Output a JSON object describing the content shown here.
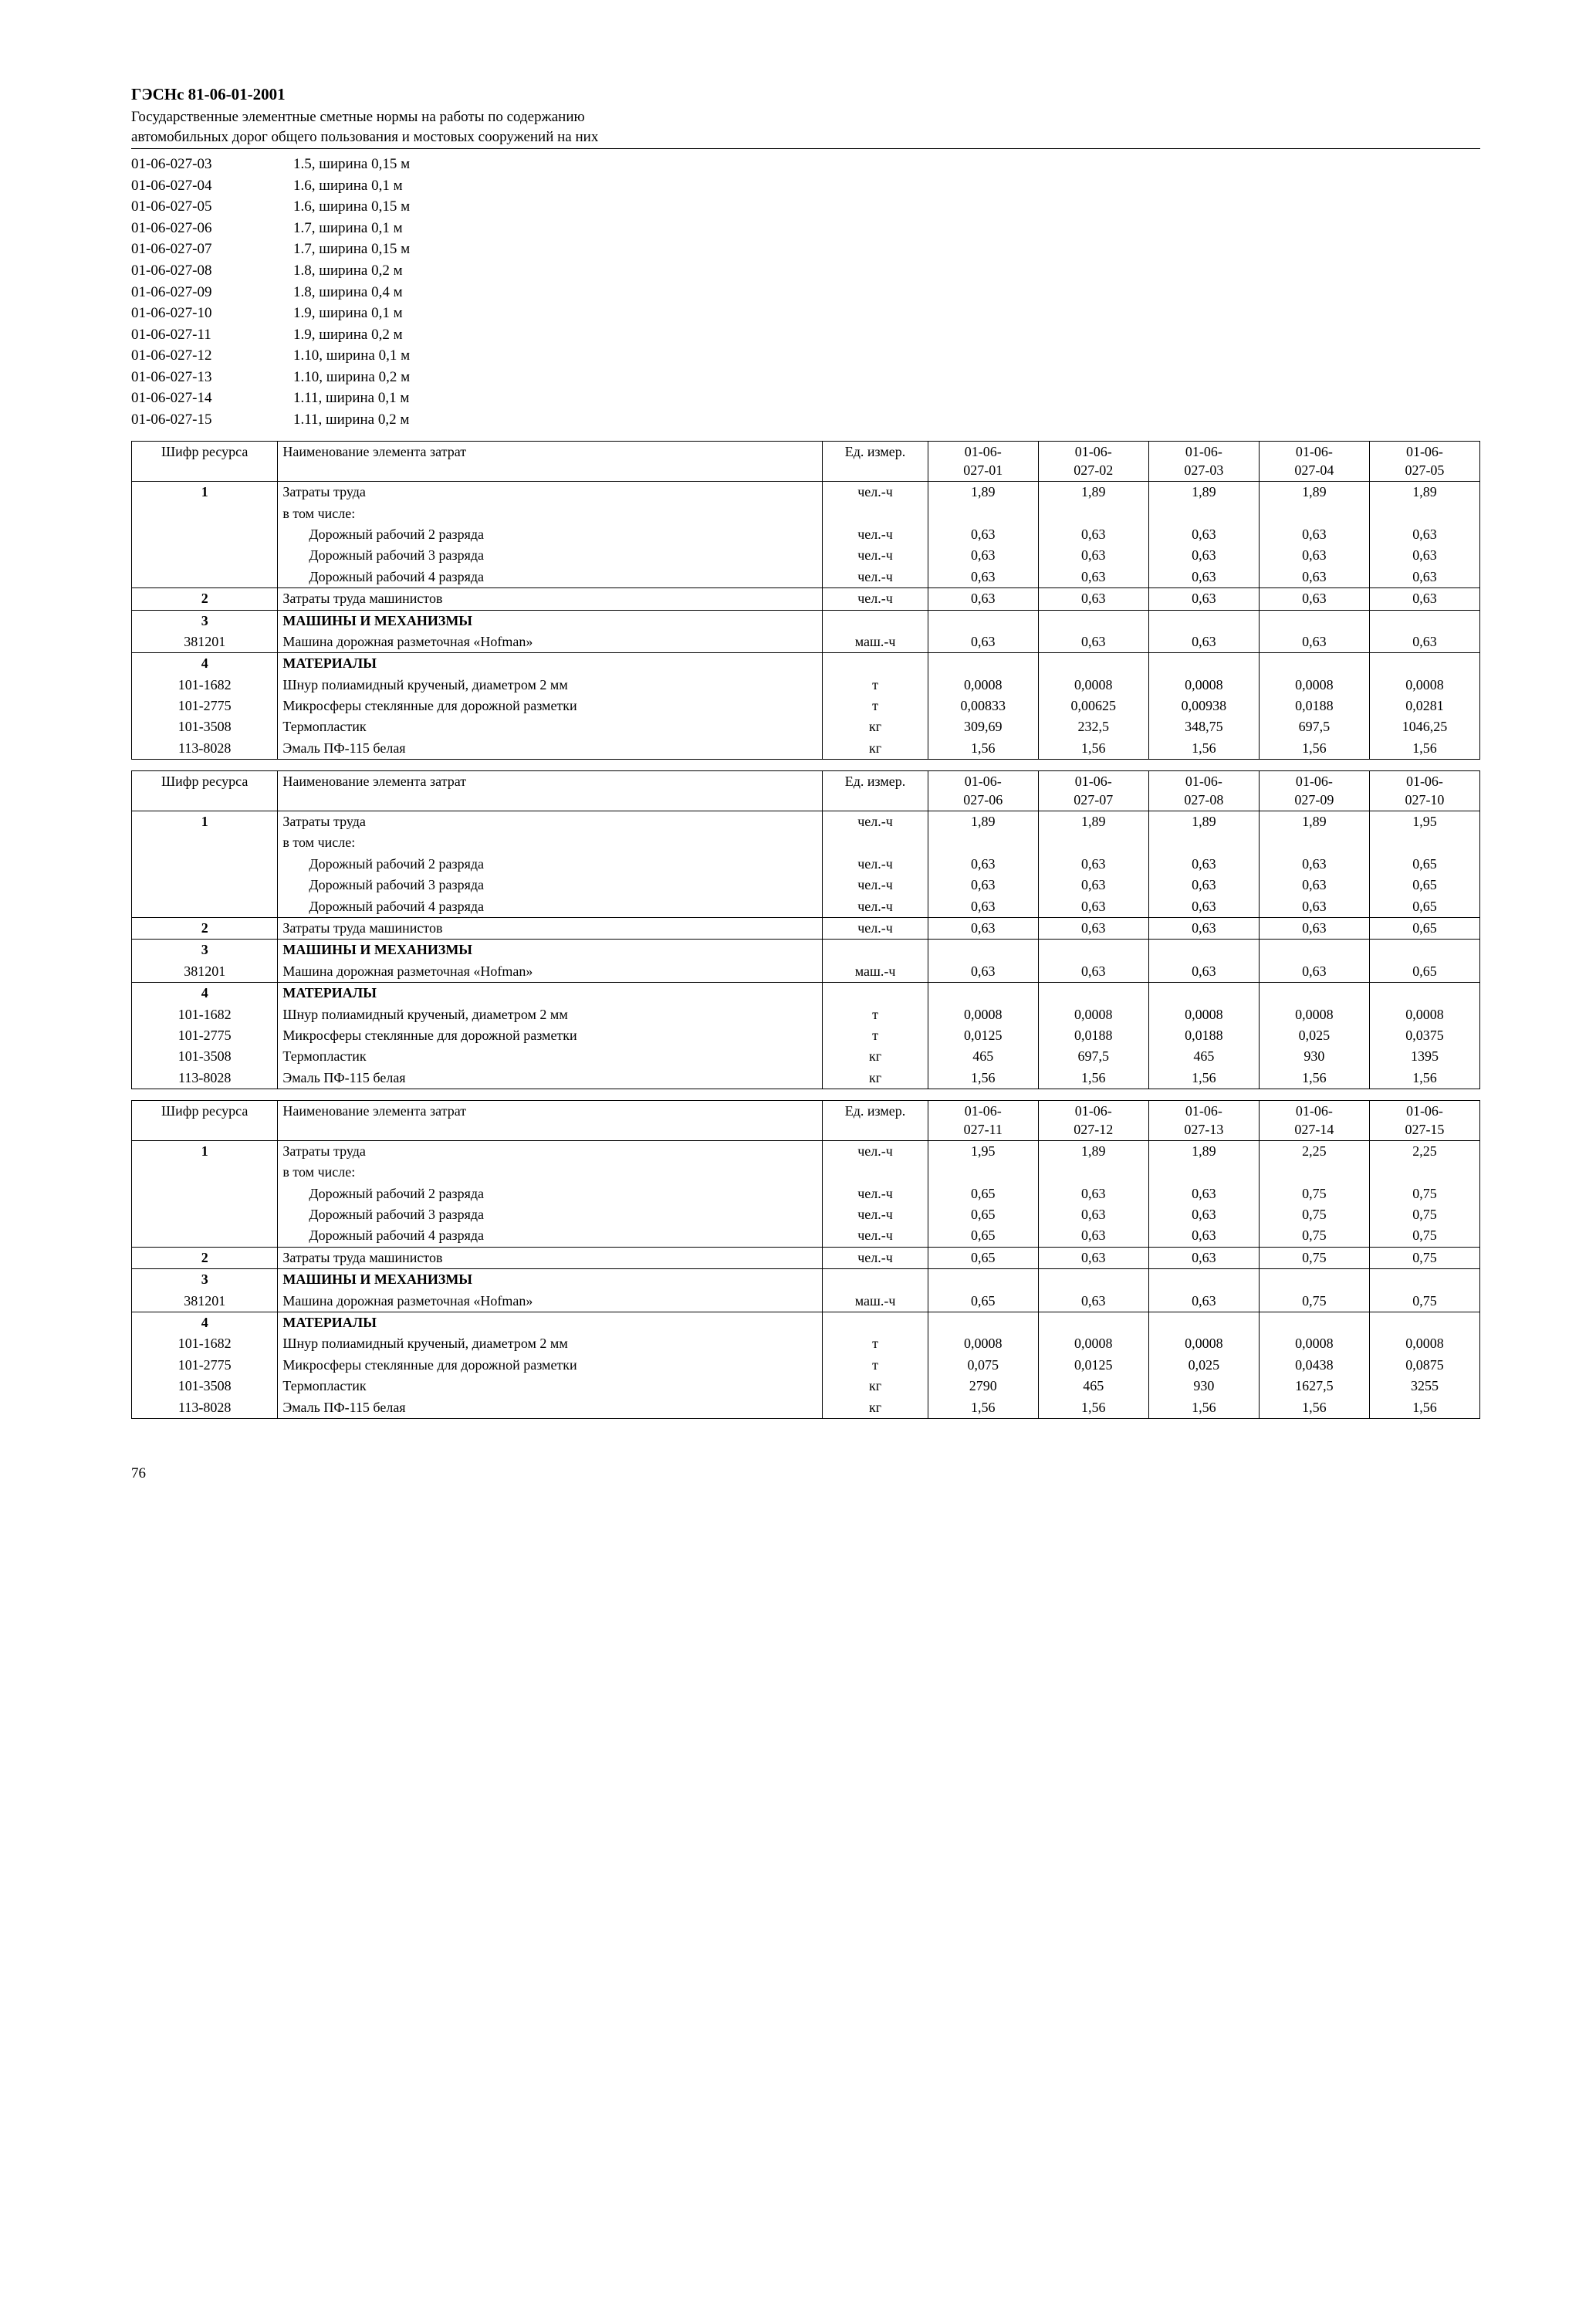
{
  "header": {
    "code": "ГЭСНс 81-06-01-2001",
    "title_line1": "Государственные элементные сметные нормы на работы по содержанию",
    "title_line2": "автомобильных дорог общего пользования и мостовых сооружений на них"
  },
  "codes_list": [
    {
      "code": "01-06-027-03",
      "desc": "1.5, ширина 0,15 м"
    },
    {
      "code": "01-06-027-04",
      "desc": "1.6, ширина 0,1 м"
    },
    {
      "code": "01-06-027-05",
      "desc": "1.6, ширина 0,15 м"
    },
    {
      "code": "01-06-027-06",
      "desc": "1.7, ширина 0,1 м"
    },
    {
      "code": "01-06-027-07",
      "desc": "1.7, ширина 0,15 м"
    },
    {
      "code": "01-06-027-08",
      "desc": "1.8, ширина 0,2 м"
    },
    {
      "code": "01-06-027-09",
      "desc": "1.8, ширина 0,4 м"
    },
    {
      "code": "01-06-027-10",
      "desc": "1.9, ширина 0,1 м"
    },
    {
      "code": "01-06-027-11",
      "desc": "1.9, ширина 0,2 м"
    },
    {
      "code": "01-06-027-12",
      "desc": "1.10, ширина 0,1 м"
    },
    {
      "code": "01-06-027-13",
      "desc": "1.10, ширина 0,2 м"
    },
    {
      "code": "01-06-027-14",
      "desc": "1.11, ширина 0,1 м"
    },
    {
      "code": "01-06-027-15",
      "desc": "1.11, ширина 0,2 м"
    }
  ],
  "table_common": {
    "h_code": "Шифр ресурса",
    "h_name": "Наименование элемента затрат",
    "h_unit": "Ед. измер.",
    "sec3": "МАШИНЫ И МЕХАНИЗМЫ",
    "sec4": "МАТЕРИАЛЫ",
    "r1_name": "Затраты труда",
    "r1_sub": "в том числе:",
    "r1a": "Дорожный рабочий 2 разряда",
    "r1b": "Дорожный рабочий 3 разряда",
    "r1c": "Дорожный рабочий 4 разряда",
    "r2": "Затраты труда машинистов",
    "r3_381201": "Машина дорожная разметочная «Hofman»",
    "r4_1011682": "Шнур полиамидный крученый, диаметром 2 мм",
    "r4_1012775": "Микросферы стеклянные для дорожной разметки",
    "r4_1013508": "Термопластик",
    "r4_1138028": "Эмаль ПФ-115 белая",
    "u_chel": "чел.-ч",
    "u_mash": "маш.-ч",
    "u_t": "т",
    "u_kg": "кг"
  },
  "tables": [
    {
      "cols": [
        "01-06-027-01",
        "01-06-027-02",
        "01-06-027-03",
        "01-06-027-04",
        "01-06-027-05"
      ],
      "r1": [
        "1,89",
        "1,89",
        "1,89",
        "1,89",
        "1,89"
      ],
      "r1a": [
        "0,63",
        "0,63",
        "0,63",
        "0,63",
        "0,63"
      ],
      "r1b": [
        "0,63",
        "0,63",
        "0,63",
        "0,63",
        "0,63"
      ],
      "r1c": [
        "0,63",
        "0,63",
        "0,63",
        "0,63",
        "0,63"
      ],
      "r2": [
        "0,63",
        "0,63",
        "0,63",
        "0,63",
        "0,63"
      ],
      "r3": [
        "0,63",
        "0,63",
        "0,63",
        "0,63",
        "0,63"
      ],
      "m1": [
        "0,0008",
        "0,0008",
        "0,0008",
        "0,0008",
        "0,0008"
      ],
      "m2": [
        "0,00833",
        "0,00625",
        "0,00938",
        "0,0188",
        "0,0281"
      ],
      "m3": [
        "309,69",
        "232,5",
        "348,75",
        "697,5",
        "1046,25"
      ],
      "m4": [
        "1,56",
        "1,56",
        "1,56",
        "1,56",
        "1,56"
      ]
    },
    {
      "cols": [
        "01-06-027-06",
        "01-06-027-07",
        "01-06-027-08",
        "01-06-027-09",
        "01-06-027-10"
      ],
      "r1": [
        "1,89",
        "1,89",
        "1,89",
        "1,89",
        "1,95"
      ],
      "r1a": [
        "0,63",
        "0,63",
        "0,63",
        "0,63",
        "0,65"
      ],
      "r1b": [
        "0,63",
        "0,63",
        "0,63",
        "0,63",
        "0,65"
      ],
      "r1c": [
        "0,63",
        "0,63",
        "0,63",
        "0,63",
        "0,65"
      ],
      "r2": [
        "0,63",
        "0,63",
        "0,63",
        "0,63",
        "0,65"
      ],
      "r3": [
        "0,63",
        "0,63",
        "0,63",
        "0,63",
        "0,65"
      ],
      "m1": [
        "0,0008",
        "0,0008",
        "0,0008",
        "0,0008",
        "0,0008"
      ],
      "m2": [
        "0,0125",
        "0,0188",
        "0,0188",
        "0,025",
        "0,0375"
      ],
      "m3": [
        "465",
        "697,5",
        "465",
        "930",
        "1395"
      ],
      "m4": [
        "1,56",
        "1,56",
        "1,56",
        "1,56",
        "1,56"
      ]
    },
    {
      "cols": [
        "01-06-027-11",
        "01-06-027-12",
        "01-06-027-13",
        "01-06-027-14",
        "01-06-027-15"
      ],
      "r1": [
        "1,95",
        "1,89",
        "1,89",
        "2,25",
        "2,25"
      ],
      "r1a": [
        "0,65",
        "0,63",
        "0,63",
        "0,75",
        "0,75"
      ],
      "r1b": [
        "0,65",
        "0,63",
        "0,63",
        "0,75",
        "0,75"
      ],
      "r1c": [
        "0,65",
        "0,63",
        "0,63",
        "0,75",
        "0,75"
      ],
      "r2": [
        "0,65",
        "0,63",
        "0,63",
        "0,75",
        "0,75"
      ],
      "r3": [
        "0,65",
        "0,63",
        "0,63",
        "0,75",
        "0,75"
      ],
      "m1": [
        "0,0008",
        "0,0008",
        "0,0008",
        "0,0008",
        "0,0008"
      ],
      "m2": [
        "0,075",
        "0,0125",
        "0,025",
        "0,0438",
        "0,0875"
      ],
      "m3": [
        "2790",
        "465",
        "930",
        "1627,5",
        "3255"
      ],
      "m4": [
        "1,56",
        "1,56",
        "1,56",
        "1,56",
        "1,56"
      ]
    }
  ],
  "page_number": "76"
}
